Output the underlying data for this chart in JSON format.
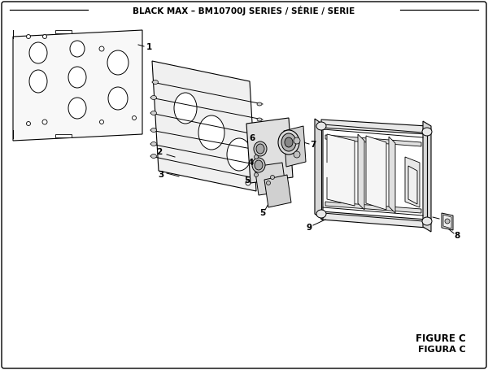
{
  "title": "BLACK MAX – BM10700J SERIES / SÉRIE / SERIE",
  "figure_label": "FIGURE C",
  "figura_label": "FIGURA C",
  "bg_color": "#ffffff",
  "line_color": "#000000",
  "title_fontsize": 7.5,
  "label_fontsize": 7.5
}
